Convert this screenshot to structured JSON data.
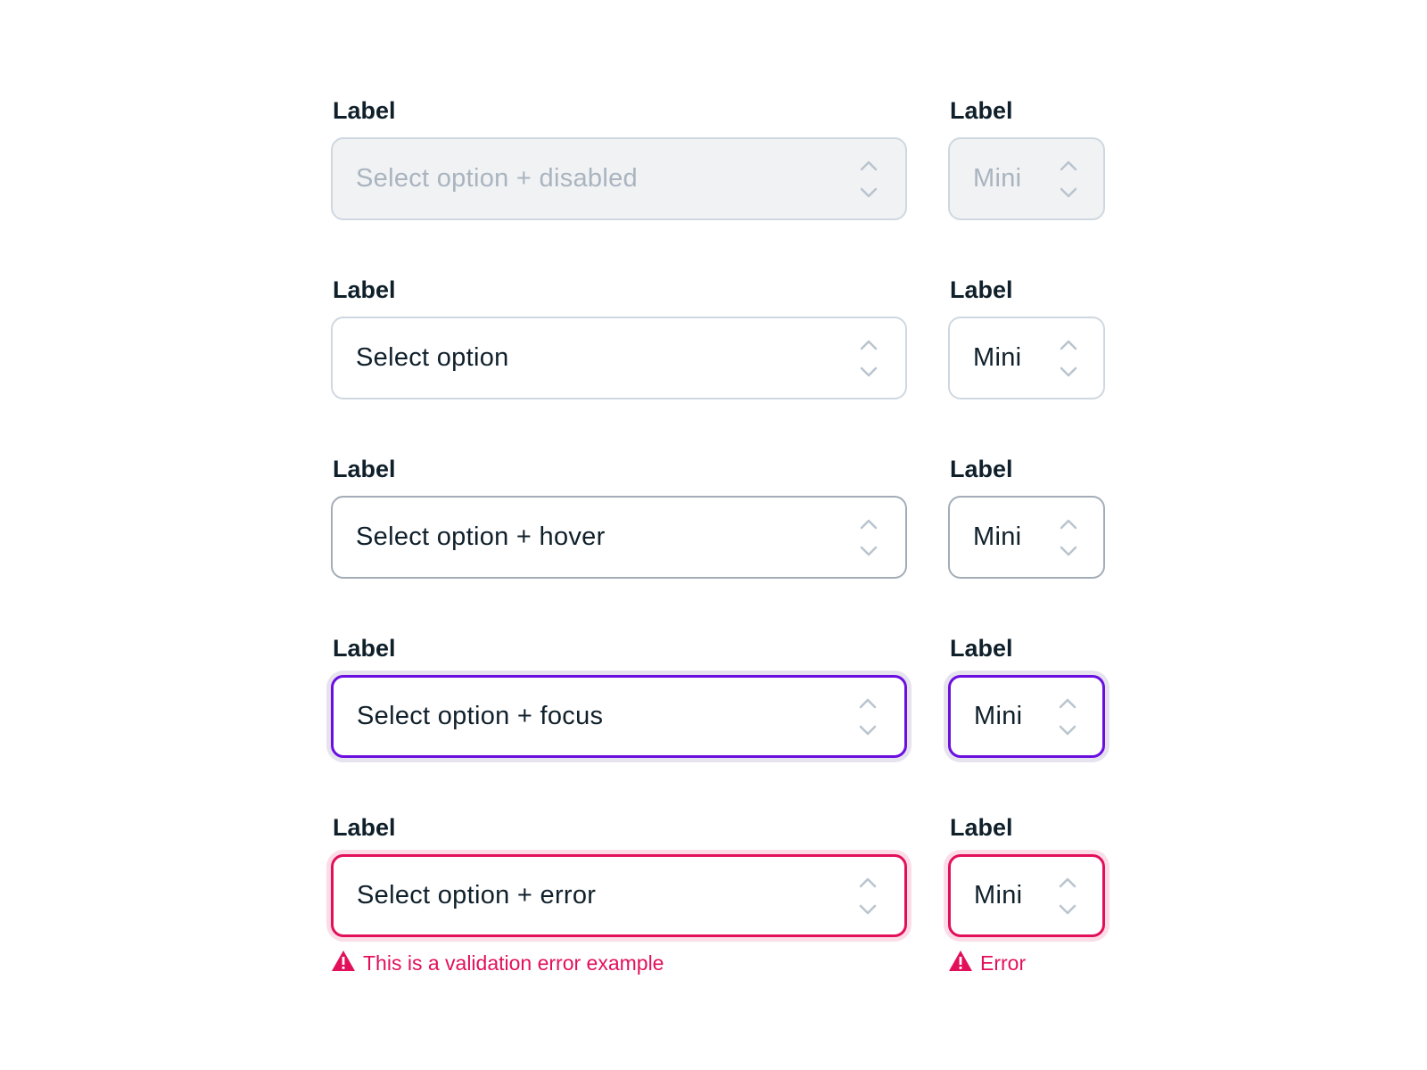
{
  "rows": [
    {
      "state": "disabled",
      "label": "Label",
      "value": "Select option + disabled",
      "mini_label": "Label",
      "mini_value": "Mini"
    },
    {
      "state": "default",
      "label": "Label",
      "value": "Select option",
      "mini_label": "Label",
      "mini_value": "Mini"
    },
    {
      "state": "hover",
      "label": "Label",
      "value": "Select option + hover",
      "mini_label": "Label",
      "mini_value": "Mini"
    },
    {
      "state": "focus",
      "label": "Label",
      "value": "Select option + focus",
      "mini_label": "Label",
      "mini_value": "Mini"
    },
    {
      "state": "error",
      "label": "Label",
      "value": "Select option + error",
      "mini_label": "Label",
      "mini_value": "Mini",
      "error": "This is a validation error example",
      "mini_error": "Error"
    }
  ],
  "colors": {
    "focus": "#6a0fe0",
    "error": "#e2105b",
    "border": "#cfd8e0",
    "text": "#10202b",
    "disabled_bg": "#f1f2f4"
  },
  "icons": {
    "chevron": "chevron-up-down-icon",
    "warning": "warning-triangle-icon"
  }
}
